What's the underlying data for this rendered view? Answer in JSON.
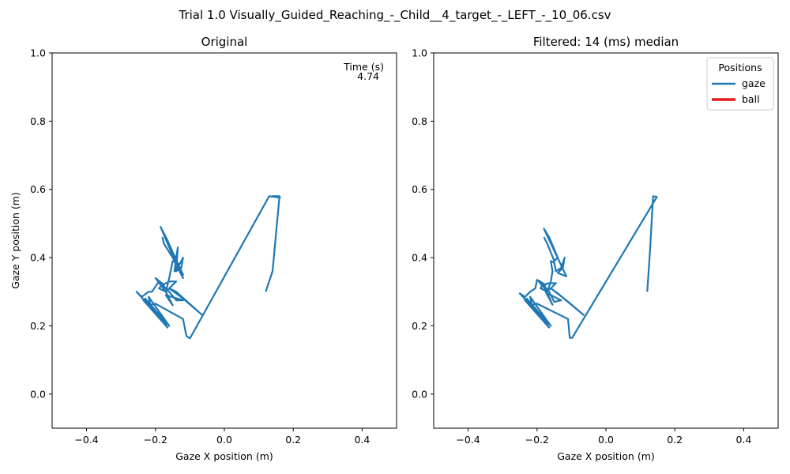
{
  "figure": {
    "suptitle": "Trial 1.0 Visually_Guided_Reaching_-_Child__4_target_-_LEFT_-_10_06.csv"
  },
  "colors": {
    "gaze": "#1f77b4",
    "ball": "#e31a1c",
    "axes": "#000000"
  },
  "chart_data": [
    {
      "type": "line",
      "title": "Original",
      "xlabel": "Gaze X position (m)",
      "ylabel": "Gaze Y position (m)",
      "xlim": [
        -0.5,
        0.5
      ],
      "ylim": [
        -0.1,
        1.0
      ],
      "xticks": [
        -0.4,
        -0.2,
        0.0,
        0.2,
        0.4
      ],
      "xtick_labels": [
        "−0.4",
        "−0.2",
        "0.0",
        "0.2",
        "0.4"
      ],
      "yticks": [
        0.0,
        0.2,
        0.4,
        0.6,
        0.8,
        1.0
      ],
      "ytick_labels": [
        "0.0",
        "0.2",
        "0.4",
        "0.6",
        "0.8",
        "1.0"
      ],
      "grid": false,
      "annotation": {
        "label": "Time (s)",
        "value": "4.74",
        "placement": "top-right"
      },
      "series": [
        {
          "key": "gaze",
          "points": [
            [
              0.12,
              0.3
            ],
            [
              0.14,
              0.36
            ],
            [
              0.16,
              0.58
            ],
            [
              0.14,
              0.58
            ],
            [
              0.162,
              0.576
            ],
            [
              0.13,
              0.58
            ],
            [
              -0.1,
              0.163
            ],
            [
              -0.11,
              0.17
            ],
            [
              -0.12,
              0.22
            ],
            [
              -0.2,
              0.265
            ],
            [
              -0.215,
              0.262
            ],
            [
              -0.22,
              0.285
            ],
            [
              -0.16,
              0.2
            ],
            [
              -0.23,
              0.28
            ],
            [
              -0.165,
              0.195
            ],
            [
              -0.235,
              0.275
            ],
            [
              -0.17,
              0.205
            ],
            [
              -0.255,
              0.3
            ],
            [
              -0.24,
              0.285
            ],
            [
              -0.22,
              0.3
            ],
            [
              -0.21,
              0.3
            ],
            [
              -0.19,
              0.33
            ],
            [
              -0.175,
              0.32
            ],
            [
              -0.2,
              0.34
            ],
            [
              -0.17,
              0.3
            ],
            [
              -0.19,
              0.33
            ],
            [
              -0.16,
              0.3
            ],
            [
              -0.14,
              0.275
            ],
            [
              -0.12,
              0.275
            ],
            [
              -0.17,
              0.29
            ],
            [
              -0.15,
              0.26
            ],
            [
              -0.17,
              0.3
            ],
            [
              -0.16,
              0.31
            ],
            [
              -0.14,
              0.3
            ],
            [
              -0.065,
              0.232
            ],
            [
              -0.12,
              0.28
            ],
            [
              -0.16,
              0.31
            ],
            [
              -0.14,
              0.33
            ],
            [
              -0.16,
              0.33
            ],
            [
              -0.18,
              0.32
            ],
            [
              -0.19,
              0.31
            ],
            [
              -0.17,
              0.3
            ],
            [
              -0.16,
              0.34
            ],
            [
              -0.15,
              0.39
            ],
            [
              -0.13,
              0.38
            ],
            [
              -0.12,
              0.4
            ],
            [
              -0.125,
              0.37
            ],
            [
              -0.14,
              0.36
            ],
            [
              -0.135,
              0.43
            ],
            [
              -0.14,
              0.4
            ],
            [
              -0.145,
              0.36
            ],
            [
              -0.13,
              0.37
            ],
            [
              -0.12,
              0.34
            ],
            [
              -0.135,
              0.37
            ],
            [
              -0.185,
              0.49
            ],
            [
              -0.17,
              0.46
            ],
            [
              -0.12,
              0.35
            ],
            [
              -0.18,
              0.48
            ],
            [
              -0.165,
              0.45
            ],
            [
              -0.13,
              0.37
            ],
            [
              -0.15,
              0.4
            ],
            [
              -0.175,
              0.44
            ],
            [
              -0.18,
              0.46
            ]
          ]
        }
      ]
    },
    {
      "type": "line",
      "title": "Filtered: 14 (ms) median",
      "xlabel": "Gaze X position (m)",
      "ylabel": "",
      "xlim": [
        -0.5,
        0.5
      ],
      "ylim": [
        -0.1,
        1.0
      ],
      "xticks": [
        -0.4,
        -0.2,
        0.0,
        0.2,
        0.4
      ],
      "xtick_labels": [
        "−0.4",
        "−0.2",
        "0.0",
        "0.2",
        "0.4"
      ],
      "yticks": [
        0.0,
        0.2,
        0.4,
        0.6,
        0.8,
        1.0
      ],
      "ytick_labels": [
        "0.0",
        "0.2",
        "0.4",
        "0.6",
        "0.8",
        "1.0"
      ],
      "grid": false,
      "legend": {
        "title": "Positions",
        "placement": "top-right",
        "entries": [
          {
            "label": "gaze",
            "key": "gaze"
          },
          {
            "label": "ball",
            "key": "ball"
          }
        ]
      },
      "series": [
        {
          "key": "gaze",
          "points": [
            [
              0.12,
              0.3
            ],
            [
              0.128,
              0.42
            ],
            [
              0.137,
              0.58
            ],
            [
              0.148,
              0.578
            ],
            [
              -0.098,
              0.165
            ],
            [
              -0.105,
              0.165
            ],
            [
              -0.11,
              0.22
            ],
            [
              -0.2,
              0.265
            ],
            [
              -0.215,
              0.262
            ],
            [
              -0.22,
              0.285
            ],
            [
              -0.16,
              0.2
            ],
            [
              -0.23,
              0.28
            ],
            [
              -0.165,
              0.195
            ],
            [
              -0.235,
              0.275
            ],
            [
              -0.17,
              0.205
            ],
            [
              -0.25,
              0.295
            ],
            [
              -0.235,
              0.285
            ],
            [
              -0.22,
              0.3
            ],
            [
              -0.205,
              0.31
            ],
            [
              -0.2,
              0.335
            ],
            [
              -0.175,
              0.32
            ],
            [
              -0.195,
              0.33
            ],
            [
              -0.17,
              0.3
            ],
            [
              -0.19,
              0.33
            ],
            [
              -0.165,
              0.3
            ],
            [
              -0.15,
              0.27
            ],
            [
              -0.13,
              0.275
            ],
            [
              -0.17,
              0.295
            ],
            [
              -0.155,
              0.262
            ],
            [
              -0.175,
              0.3
            ],
            [
              -0.16,
              0.31
            ],
            [
              -0.14,
              0.295
            ],
            [
              -0.065,
              0.232
            ],
            [
              -0.115,
              0.275
            ],
            [
              -0.16,
              0.31
            ],
            [
              -0.145,
              0.325
            ],
            [
              -0.165,
              0.325
            ],
            [
              -0.185,
              0.32
            ],
            [
              -0.19,
              0.31
            ],
            [
              -0.17,
              0.3
            ],
            [
              -0.16,
              0.33
            ],
            [
              -0.155,
              0.36
            ],
            [
              -0.16,
              0.39
            ],
            [
              -0.15,
              0.385
            ],
            [
              -0.145,
              0.36
            ],
            [
              -0.13,
              0.37
            ],
            [
              -0.12,
              0.4
            ],
            [
              -0.125,
              0.37
            ],
            [
              -0.14,
              0.355
            ],
            [
              -0.115,
              0.345
            ],
            [
              -0.18,
              0.485
            ],
            [
              -0.165,
              0.46
            ],
            [
              -0.14,
              0.4
            ],
            [
              -0.15,
              0.39
            ],
            [
              -0.17,
              0.44
            ],
            [
              -0.175,
              0.45
            ],
            [
              -0.18,
              0.46
            ]
          ]
        }
      ]
    }
  ]
}
